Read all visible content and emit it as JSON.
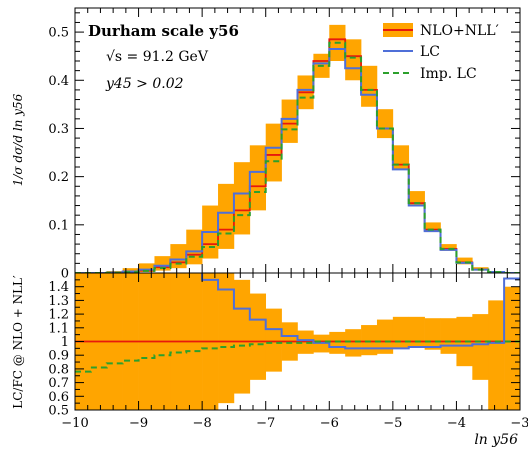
{
  "chart_data": [
    {
      "type": "line",
      "panel": "main",
      "annotations": [
        "Durham scale  y56",
        "√s = 91.2 GeV",
        "y45 > 0.02"
      ],
      "ylabel": "1/σ dσ/d ln y56",
      "xlim": [
        -10,
        -3
      ],
      "ylim": [
        0,
        0.55
      ],
      "yticks": [
        "0",
        "0.1",
        "0.2",
        "0.3",
        "0.4",
        "0.5"
      ],
      "legend": {
        "placement": "top-right",
        "entries": [
          "NLO+NLL′",
          "LC",
          "Imp. LC"
        ]
      },
      "bin_edges": [
        -10.0,
        -9.75,
        -9.5,
        -9.25,
        -9.0,
        -8.75,
        -8.5,
        -8.25,
        -8.0,
        -7.75,
        -7.5,
        -7.25,
        -7.0,
        -6.75,
        -6.5,
        -6.25,
        -6.0,
        -5.75,
        -5.5,
        -5.25,
        -5.0,
        -4.75,
        -4.5,
        -4.25,
        -4.0,
        -3.75,
        -3.5,
        -3.25,
        -3.0
      ],
      "series": [
        {
          "name": "NLO+NLL′",
          "color": "#e8190c",
          "band_color": "#ffa500",
          "values": [
            0.0,
            0.0,
            0.0005,
            0.002,
            0.005,
            0.012,
            0.022,
            0.038,
            0.06,
            0.09,
            0.13,
            0.18,
            0.245,
            0.31,
            0.375,
            0.44,
            0.485,
            0.45,
            0.38,
            0.3,
            0.225,
            0.145,
            0.09,
            0.05,
            0.022,
            0.007,
            0.002,
            0.0
          ],
          "band_low": [
            0.0,
            0.0,
            0.0,
            0.0005,
            0.002,
            0.005,
            0.01,
            0.018,
            0.03,
            0.05,
            0.08,
            0.13,
            0.19,
            0.27,
            0.34,
            0.405,
            0.44,
            0.4,
            0.345,
            0.28,
            0.215,
            0.14,
            0.085,
            0.046,
            0.018,
            0.005,
            0.0005,
            0.0
          ],
          "band_high": [
            0.0005,
            0.001,
            0.004,
            0.01,
            0.02,
            0.035,
            0.06,
            0.09,
            0.14,
            0.185,
            0.23,
            0.265,
            0.31,
            0.36,
            0.41,
            0.455,
            0.515,
            0.485,
            0.43,
            0.34,
            0.265,
            0.17,
            0.105,
            0.06,
            0.032,
            0.012,
            0.004,
            0.001
          ]
        },
        {
          "name": "LC",
          "color": "#4f6fd8",
          "values": [
            0.0,
            0.0,
            0.001,
            0.003,
            0.007,
            0.015,
            0.028,
            0.045,
            0.085,
            0.125,
            0.165,
            0.21,
            0.26,
            0.32,
            0.38,
            0.435,
            0.465,
            0.425,
            0.37,
            0.3,
            0.215,
            0.14,
            0.087,
            0.048,
            0.021,
            0.007,
            0.002,
            0.0
          ]
        },
        {
          "name": "Imp. LC",
          "color": "#2ca02c",
          "dashed": true,
          "values": [
            0.0,
            0.0,
            0.0004,
            0.0017,
            0.0043,
            0.0105,
            0.0194,
            0.0337,
            0.054,
            0.082,
            0.12,
            0.168,
            0.232,
            0.298,
            0.364,
            0.43,
            0.478,
            0.447,
            0.38,
            0.3,
            0.225,
            0.145,
            0.09,
            0.05,
            0.022,
            0.007,
            0.002,
            0.0
          ]
        }
      ]
    },
    {
      "type": "line",
      "panel": "ratio",
      "ylabel": "LC/FC @ NLO + NLL′",
      "xlabel": "ln y56",
      "xlim": [
        -10,
        -3
      ],
      "ylim": [
        0.5,
        1.5
      ],
      "xticks": [
        "-10",
        "-9",
        "-8",
        "-7",
        "-6",
        "-5",
        "-4",
        "-3"
      ],
      "yticks": [
        "0.5",
        "0.6",
        "0.7",
        "0.8",
        "0.9",
        "1",
        "1.1",
        "1.2",
        "1.3",
        "1.4"
      ],
      "bin_edges": [
        -10.0,
        -9.75,
        -9.5,
        -9.25,
        -9.0,
        -8.75,
        -8.5,
        -8.25,
        -8.0,
        -7.75,
        -7.5,
        -7.25,
        -7.0,
        -6.75,
        -6.5,
        -6.25,
        -6.0,
        -5.75,
        -5.5,
        -5.25,
        -5.0,
        -4.75,
        -4.5,
        -4.25,
        -4.0,
        -3.75,
        -3.5,
        -3.25,
        -3.0
      ],
      "series": [
        {
          "name": "NLO+NLL′",
          "color": "#e8190c",
          "band_color": "#ffa500",
          "values": [
            1,
            1,
            1,
            1,
            1,
            1,
            1,
            1,
            1,
            1,
            1,
            1,
            1,
            1,
            1,
            1,
            1,
            1,
            1,
            1,
            1,
            1,
            1,
            1,
            1,
            1,
            1,
            1
          ],
          "band_low": [
            0.5,
            0.5,
            0.5,
            0.5,
            0.5,
            0.5,
            0.5,
            0.5,
            0.5,
            0.55,
            0.62,
            0.72,
            0.78,
            0.86,
            0.91,
            0.92,
            0.91,
            0.89,
            0.9,
            0.91,
            0.95,
            0.96,
            0.94,
            0.91,
            0.82,
            0.72,
            0.5,
            0.5
          ],
          "band_high": [
            1.5,
            1.5,
            1.5,
            1.5,
            1.5,
            1.5,
            1.5,
            1.5,
            1.5,
            1.5,
            1.45,
            1.35,
            1.24,
            1.14,
            1.08,
            1.05,
            1.07,
            1.09,
            1.12,
            1.16,
            1.18,
            1.18,
            1.17,
            1.17,
            1.18,
            1.2,
            1.3,
            1.4
          ]
        },
        {
          "name": "LC",
          "color": "#4f6fd8",
          "values": [
            1.55,
            1.55,
            1.55,
            1.55,
            1.55,
            1.55,
            1.55,
            1.55,
            1.45,
            1.38,
            1.24,
            1.16,
            1.09,
            1.04,
            1.01,
            0.99,
            0.96,
            0.95,
            0.95,
            0.95,
            0.95,
            0.96,
            0.96,
            0.97,
            0.97,
            0.98,
            0.99,
            1.46
          ]
        },
        {
          "name": "Imp. LC",
          "color": "#2ca02c",
          "dashed": true,
          "values": [
            0.78,
            0.81,
            0.84,
            0.86,
            0.88,
            0.9,
            0.92,
            0.93,
            0.95,
            0.96,
            0.97,
            0.98,
            0.99,
            0.99,
            0.99,
            1.0,
            1.0,
            1.0,
            1.0,
            1.0,
            1.0,
            1.0,
            1.0,
            1.0,
            1.0,
            1.0,
            1.0,
            1.0
          ]
        }
      ]
    }
  ]
}
